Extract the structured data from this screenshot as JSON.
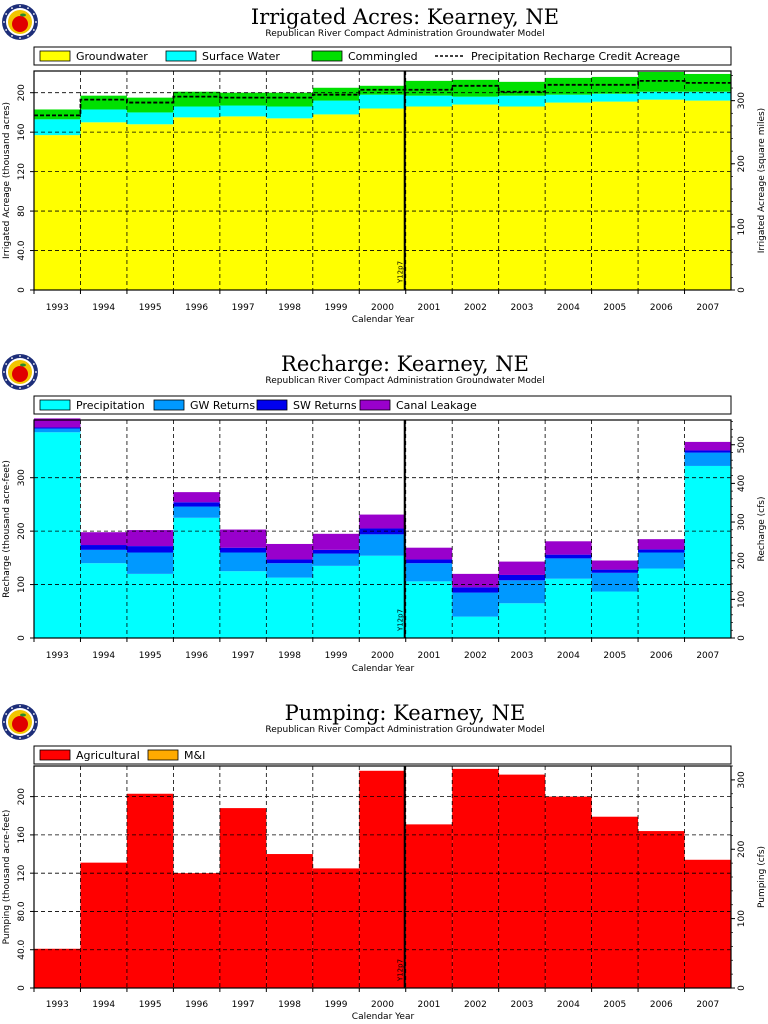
{
  "logo_colors": {
    "ring": "#1e2f7a",
    "inner": "#f2c500",
    "apple": "#e00000",
    "leaf": "#2a8a2a"
  },
  "marker_label": "Y12p7",
  "chart_data": [
    {
      "type": "bar",
      "stacked": true,
      "title": "Irrigated Acres: Kearney, NE",
      "subtitle": "Republican River Compact Administration Groundwater Model",
      "xlabel": "Calendar Year",
      "ylabel": "Irrigated Acreage (thousand acres)",
      "ylabel_right": "Irrigated Acreage (square miles)",
      "categories": [
        "1993",
        "1994",
        "1995",
        "1996",
        "1997",
        "1998",
        "1999",
        "2000",
        "2001",
        "2002",
        "2003",
        "2004",
        "2005",
        "2006",
        "2007"
      ],
      "ylim": [
        0,
        222
      ],
      "yticks": [
        0,
        40.0,
        80,
        120,
        160,
        200
      ],
      "ytick_labels": [
        "0",
        "40.0",
        "80",
        "120",
        "160",
        "200"
      ],
      "y2lim": [
        0,
        347
      ],
      "y2ticks": [
        0,
        100,
        200,
        300
      ],
      "legend": "top",
      "grid": true,
      "series": [
        {
          "name": "Groundwater",
          "color": "#ffff00",
          "values": [
            157,
            170,
            168,
            175,
            176,
            174,
            178,
            184,
            186,
            188,
            186,
            190,
            191,
            193,
            192
          ]
        },
        {
          "name": "Surface Water",
          "color": "#00ffff",
          "values": [
            16,
            13,
            12,
            11,
            11,
            12,
            14,
            14,
            11,
            8,
            11,
            8,
            8,
            8,
            9
          ]
        },
        {
          "name": "Commingled",
          "color": "#00e000",
          "values": [
            10,
            14,
            15,
            15,
            13,
            14,
            13,
            9,
            15,
            17,
            14,
            17,
            17,
            20,
            18
          ]
        }
      ],
      "line_series": {
        "name": "Precipitation Recharge Credit Acreage",
        "style": "dashed",
        "values": [
          177,
          193,
          190,
          196,
          195,
          195,
          198,
          203,
          203,
          207,
          201,
          208,
          208,
          212,
          210
        ]
      },
      "annotations": [
        "Y12p7"
      ]
    },
    {
      "type": "bar",
      "stacked": true,
      "title": "Recharge: Kearney, NE",
      "subtitle": "Republican River Compact Administration Groundwater Model",
      "xlabel": "Calendar Year",
      "ylabel": "Recharge (thousand acre-feet)",
      "ylabel_right": "Recharge (cfs)",
      "categories": [
        "1993",
        "1994",
        "1995",
        "1996",
        "1997",
        "1998",
        "1999",
        "2000",
        "2001",
        "2002",
        "2003",
        "2004",
        "2005",
        "2006",
        "2007"
      ],
      "ylim": [
        0,
        408
      ],
      "yticks": [
        0,
        100,
        200,
        300
      ],
      "ytick_labels": [
        "0",
        "100",
        "200",
        "300"
      ],
      "y2lim": [
        0,
        564
      ],
      "y2ticks": [
        0,
        100,
        200,
        300,
        400,
        500
      ],
      "legend": "top",
      "grid": true,
      "series": [
        {
          "name": "Precipitation",
          "color": "#00ffff",
          "values": [
            385,
            140,
            120,
            225,
            125,
            113,
            135,
            154,
            106,
            40,
            65,
            111,
            87,
            130,
            322
          ]
        },
        {
          "name": "GW Returns",
          "color": "#0099ff",
          "values": [
            7,
            25,
            40,
            21,
            35,
            27,
            23,
            40,
            34,
            45,
            43,
            38,
            35,
            30,
            25
          ]
        },
        {
          "name": "SW Returns",
          "color": "#0000ee",
          "values": [
            2,
            9,
            12,
            8,
            9,
            7,
            7,
            11,
            7,
            10,
            10,
            7,
            6,
            6,
            4
          ]
        },
        {
          "name": "Canal Leakage",
          "color": "#9900cc",
          "values": [
            17,
            24,
            30,
            19,
            34,
            29,
            30,
            26,
            22,
            25,
            25,
            25,
            17,
            19,
            16
          ]
        }
      ],
      "annotations": [
        "Y12p7"
      ]
    },
    {
      "type": "bar",
      "stacked": true,
      "title": "Pumping: Kearney, NE",
      "subtitle": "Republican River Compact Administration Groundwater Model",
      "xlabel": "Calendar Year",
      "ylabel": "Pumping (thousand acre-feet)",
      "ylabel_right": "Pumping (cfs)",
      "categories": [
        "1993",
        "1994",
        "1995",
        "1996",
        "1997",
        "1998",
        "1999",
        "2000",
        "2001",
        "2002",
        "2003",
        "2004",
        "2005",
        "2006",
        "2007"
      ],
      "ylim": [
        0,
        232
      ],
      "yticks": [
        0,
        40.0,
        80.0,
        120,
        160,
        200
      ],
      "ytick_labels": [
        "0",
        "40.0",
        "80.0",
        "120",
        "160",
        "200"
      ],
      "y2lim": [
        0,
        320
      ],
      "y2ticks": [
        0,
        100,
        200,
        300
      ],
      "legend": "top",
      "grid": true,
      "series": [
        {
          "name": "Agricultural",
          "color": "#ff0000",
          "values": [
            41,
            131,
            203,
            120,
            188,
            140,
            125,
            227,
            171,
            229,
            223,
            200,
            179,
            164,
            134
          ]
        },
        {
          "name": "M&I",
          "color": "#ffaa00",
          "values": [
            0,
            0,
            0,
            0,
            0,
            0,
            0,
            0,
            0,
            0,
            0,
            0,
            0,
            0,
            0
          ]
        }
      ],
      "annotations": [
        "Y12p7"
      ]
    }
  ]
}
